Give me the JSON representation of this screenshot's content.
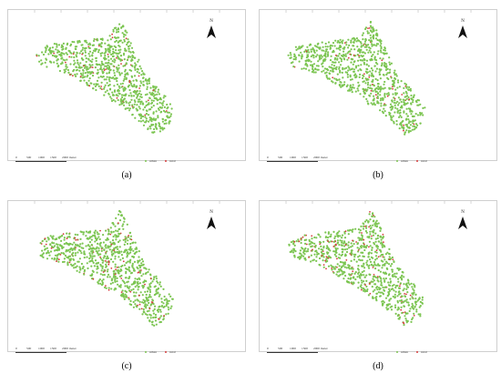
{
  "colors": {
    "urban": "#7cc552",
    "rural": "#d63c3c",
    "frame": "#cfcfcf"
  },
  "north_arrow": {
    "letter": "N",
    "icon": "north-arrow-icon"
  },
  "scale": {
    "labels": [
      "0",
      "500",
      "1000",
      "1500",
      "2000 meter"
    ]
  },
  "panels": [
    {
      "id": "a",
      "label": "(a)",
      "legend": {
        "urban": "urban",
        "rural": "rural"
      },
      "rural_density": 0.06
    },
    {
      "id": "b",
      "label": "(b)",
      "legend": {
        "urban": "urban",
        "rural": "rural"
      },
      "rural_density": 0.04
    },
    {
      "id": "c",
      "label": "(c)",
      "legend": {
        "urban": "urban",
        "rural": "rural"
      },
      "rural_density": 0.08
    },
    {
      "id": "d",
      "label": "(d)",
      "legend": {
        "urban": "urban",
        "rural": "rural"
      },
      "rural_density": 0.1
    }
  ]
}
